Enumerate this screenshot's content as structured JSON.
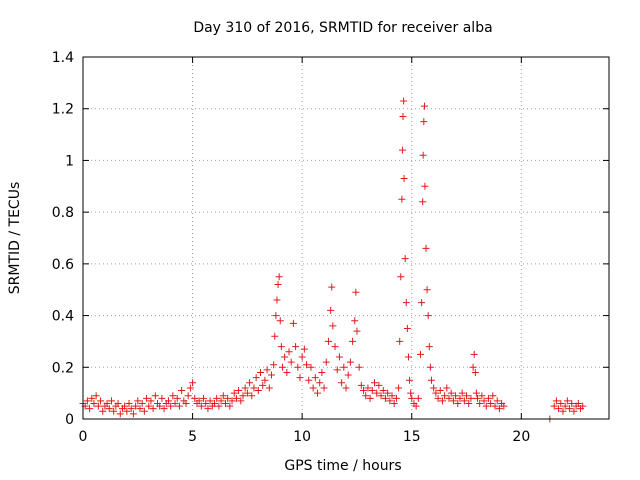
{
  "chart_data": {
    "type": "scatter",
    "title": "Day 310 of 2016, SRMTID for receiver alba",
    "xlabel": "GPS time / hours",
    "ylabel": "SRMTID / TECUs",
    "xlim": [
      0,
      24
    ],
    "ylim": [
      0,
      1.4
    ],
    "xticks": [
      0,
      5,
      10,
      15,
      20
    ],
    "xtick_labels": [
      "0",
      "5",
      "10",
      "15",
      "20"
    ],
    "yticks": [
      0,
      0.2,
      0.4,
      0.6,
      0.8,
      1,
      1.2,
      1.4
    ],
    "ytick_labels": [
      "0",
      "0.2",
      "0.4",
      "0.6",
      "0.8",
      "1",
      "1.2",
      "1.4"
    ],
    "grid": true,
    "marker": "+",
    "series": [
      {
        "name": "SRMTID",
        "color": "#e41a1c",
        "points": [
          [
            0.0,
            0.06
          ],
          [
            0.1,
            0.05
          ],
          [
            0.2,
            0.07
          ],
          [
            0.3,
            0.04
          ],
          [
            0.4,
            0.08
          ],
          [
            0.5,
            0.06
          ],
          [
            0.6,
            0.09
          ],
          [
            0.7,
            0.05
          ],
          [
            0.8,
            0.07
          ],
          [
            0.9,
            0.03
          ],
          [
            1.0,
            0.05
          ],
          [
            1.1,
            0.06
          ],
          [
            1.2,
            0.04
          ],
          [
            1.3,
            0.07
          ],
          [
            1.4,
            0.03
          ],
          [
            1.5,
            0.05
          ],
          [
            1.6,
            0.06
          ],
          [
            1.7,
            0.02
          ],
          [
            1.8,
            0.04
          ],
          [
            1.9,
            0.05
          ],
          [
            2.0,
            0.03
          ],
          [
            2.1,
            0.06
          ],
          [
            2.2,
            0.04
          ],
          [
            2.3,
            0.02
          ],
          [
            2.4,
            0.05
          ],
          [
            2.5,
            0.07
          ],
          [
            2.6,
            0.04
          ],
          [
            2.7,
            0.06
          ],
          [
            2.8,
            0.03
          ],
          [
            2.9,
            0.08
          ],
          [
            3.0,
            0.05
          ],
          [
            3.1,
            0.07
          ],
          [
            3.2,
            0.04
          ],
          [
            3.3,
            0.09
          ],
          [
            3.4,
            0.06
          ],
          [
            3.5,
            0.05
          ],
          [
            3.6,
            0.08
          ],
          [
            3.7,
            0.04
          ],
          [
            3.8,
            0.06
          ],
          [
            3.9,
            0.07
          ],
          [
            4.0,
            0.05
          ],
          [
            4.1,
            0.09
          ],
          [
            4.2,
            0.06
          ],
          [
            4.3,
            0.08
          ],
          [
            4.4,
            0.05
          ],
          [
            4.5,
            0.11
          ],
          [
            4.6,
            0.07
          ],
          [
            4.7,
            0.06
          ],
          [
            4.8,
            0.09
          ],
          [
            4.9,
            0.12
          ],
          [
            5.0,
            0.14
          ],
          [
            5.1,
            0.08
          ],
          [
            5.2,
            0.06
          ],
          [
            5.3,
            0.07
          ],
          [
            5.4,
            0.05
          ],
          [
            5.5,
            0.08
          ],
          [
            5.6,
            0.06
          ],
          [
            5.7,
            0.04
          ],
          [
            5.8,
            0.07
          ],
          [
            5.9,
            0.05
          ],
          [
            6.0,
            0.06
          ],
          [
            6.1,
            0.08
          ],
          [
            6.2,
            0.05
          ],
          [
            6.3,
            0.07
          ],
          [
            6.4,
            0.09
          ],
          [
            6.5,
            0.06
          ],
          [
            6.6,
            0.08
          ],
          [
            6.7,
            0.05
          ],
          [
            6.8,
            0.07
          ],
          [
            6.9,
            0.1
          ],
          [
            7.0,
            0.08
          ],
          [
            7.1,
            0.11
          ],
          [
            7.2,
            0.07
          ],
          [
            7.3,
            0.09
          ],
          [
            7.4,
            0.12
          ],
          [
            7.5,
            0.1
          ],
          [
            7.6,
            0.14
          ],
          [
            7.7,
            0.09
          ],
          [
            7.8,
            0.12
          ],
          [
            7.9,
            0.16
          ],
          [
            8.0,
            0.11
          ],
          [
            8.1,
            0.18
          ],
          [
            8.2,
            0.13
          ],
          [
            8.3,
            0.15
          ],
          [
            8.4,
            0.19
          ],
          [
            8.5,
            0.12
          ],
          [
            8.6,
            0.17
          ],
          [
            8.7,
            0.21
          ],
          [
            8.75,
            0.32
          ],
          [
            8.8,
            0.4
          ],
          [
            8.85,
            0.46
          ],
          [
            8.9,
            0.52
          ],
          [
            8.95,
            0.55
          ],
          [
            9.0,
            0.38
          ],
          [
            9.05,
            0.28
          ],
          [
            9.1,
            0.2
          ],
          [
            9.2,
            0.24
          ],
          [
            9.3,
            0.18
          ],
          [
            9.4,
            0.26
          ],
          [
            9.5,
            0.22
          ],
          [
            9.6,
            0.37
          ],
          [
            9.7,
            0.28
          ],
          [
            9.8,
            0.2
          ],
          [
            9.9,
            0.16
          ],
          [
            10.0,
            0.24
          ],
          [
            10.1,
            0.27
          ],
          [
            10.2,
            0.21
          ],
          [
            10.3,
            0.15
          ],
          [
            10.4,
            0.2
          ],
          [
            10.5,
            0.12
          ],
          [
            10.6,
            0.16
          ],
          [
            10.7,
            0.1
          ],
          [
            10.8,
            0.14
          ],
          [
            10.9,
            0.18
          ],
          [
            11.0,
            0.12
          ],
          [
            11.1,
            0.22
          ],
          [
            11.2,
            0.3
          ],
          [
            11.3,
            0.42
          ],
          [
            11.35,
            0.51
          ],
          [
            11.4,
            0.36
          ],
          [
            11.5,
            0.28
          ],
          [
            11.6,
            0.19
          ],
          [
            11.7,
            0.24
          ],
          [
            11.8,
            0.14
          ],
          [
            11.9,
            0.2
          ],
          [
            12.0,
            0.12
          ],
          [
            12.1,
            0.17
          ],
          [
            12.2,
            0.22
          ],
          [
            12.3,
            0.3
          ],
          [
            12.4,
            0.38
          ],
          [
            12.45,
            0.49
          ],
          [
            12.5,
            0.34
          ],
          [
            12.6,
            0.2
          ],
          [
            12.7,
            0.13
          ],
          [
            12.8,
            0.11
          ],
          [
            12.9,
            0.09
          ],
          [
            13.0,
            0.12
          ],
          [
            13.1,
            0.08
          ],
          [
            13.2,
            0.11
          ],
          [
            13.3,
            0.14
          ],
          [
            13.4,
            0.1
          ],
          [
            13.5,
            0.13
          ],
          [
            13.6,
            0.09
          ],
          [
            13.7,
            0.11
          ],
          [
            13.8,
            0.08
          ],
          [
            13.9,
            0.1
          ],
          [
            14.0,
            0.07
          ],
          [
            14.1,
            0.09
          ],
          [
            14.2,
            0.06
          ],
          [
            14.3,
            0.08
          ],
          [
            14.4,
            0.12
          ],
          [
            14.45,
            0.3
          ],
          [
            14.5,
            0.55
          ],
          [
            14.55,
            0.85
          ],
          [
            14.58,
            1.04
          ],
          [
            14.6,
            1.17
          ],
          [
            14.63,
            1.23
          ],
          [
            14.65,
            0.93
          ],
          [
            14.7,
            0.62
          ],
          [
            14.75,
            0.45
          ],
          [
            14.8,
            0.35
          ],
          [
            14.85,
            0.24
          ],
          [
            14.9,
            0.15
          ],
          [
            14.95,
            0.1
          ],
          [
            15.0,
            0.08
          ],
          [
            15.1,
            0.06
          ],
          [
            15.2,
            0.05
          ],
          [
            15.3,
            0.08
          ],
          [
            15.4,
            0.25
          ],
          [
            15.45,
            0.45
          ],
          [
            15.5,
            0.84
          ],
          [
            15.52,
            1.02
          ],
          [
            15.55,
            1.15
          ],
          [
            15.58,
            1.21
          ],
          [
            15.6,
            0.9
          ],
          [
            15.65,
            0.66
          ],
          [
            15.7,
            0.5
          ],
          [
            15.75,
            0.4
          ],
          [
            15.8,
            0.28
          ],
          [
            15.85,
            0.2
          ],
          [
            15.9,
            0.15
          ],
          [
            16.0,
            0.12
          ],
          [
            16.1,
            0.1
          ],
          [
            16.2,
            0.08
          ],
          [
            16.3,
            0.11
          ],
          [
            16.4,
            0.07
          ],
          [
            16.5,
            0.09
          ],
          [
            16.6,
            0.12
          ],
          [
            16.7,
            0.08
          ],
          [
            16.8,
            0.1
          ],
          [
            16.9,
            0.07
          ],
          [
            17.0,
            0.09
          ],
          [
            17.1,
            0.06
          ],
          [
            17.2,
            0.08
          ],
          [
            17.3,
            0.1
          ],
          [
            17.4,
            0.07
          ],
          [
            17.5,
            0.09
          ],
          [
            17.6,
            0.06
          ],
          [
            17.7,
            0.08
          ],
          [
            17.8,
            0.2
          ],
          [
            17.85,
            0.25
          ],
          [
            17.9,
            0.18
          ],
          [
            17.95,
            0.1
          ],
          [
            18.0,
            0.08
          ],
          [
            18.1,
            0.06
          ],
          [
            18.2,
            0.09
          ],
          [
            18.3,
            0.07
          ],
          [
            18.4,
            0.05
          ],
          [
            18.5,
            0.08
          ],
          [
            18.6,
            0.06
          ],
          [
            18.7,
            0.09
          ],
          [
            18.8,
            0.05
          ],
          [
            18.9,
            0.07
          ],
          [
            19.0,
            0.04
          ],
          [
            19.1,
            0.06
          ],
          [
            19.2,
            0.05
          ],
          [
            21.3,
            0.0
          ],
          [
            21.5,
            0.05
          ],
          [
            21.6,
            0.07
          ],
          [
            21.7,
            0.04
          ],
          [
            21.8,
            0.06
          ],
          [
            21.9,
            0.03
          ],
          [
            22.0,
            0.05
          ],
          [
            22.1,
            0.07
          ],
          [
            22.2,
            0.04
          ],
          [
            22.3,
            0.06
          ],
          [
            22.4,
            0.03
          ],
          [
            22.5,
            0.05
          ],
          [
            22.6,
            0.06
          ],
          [
            22.7,
            0.04
          ],
          [
            22.8,
            0.05
          ]
        ]
      }
    ]
  }
}
